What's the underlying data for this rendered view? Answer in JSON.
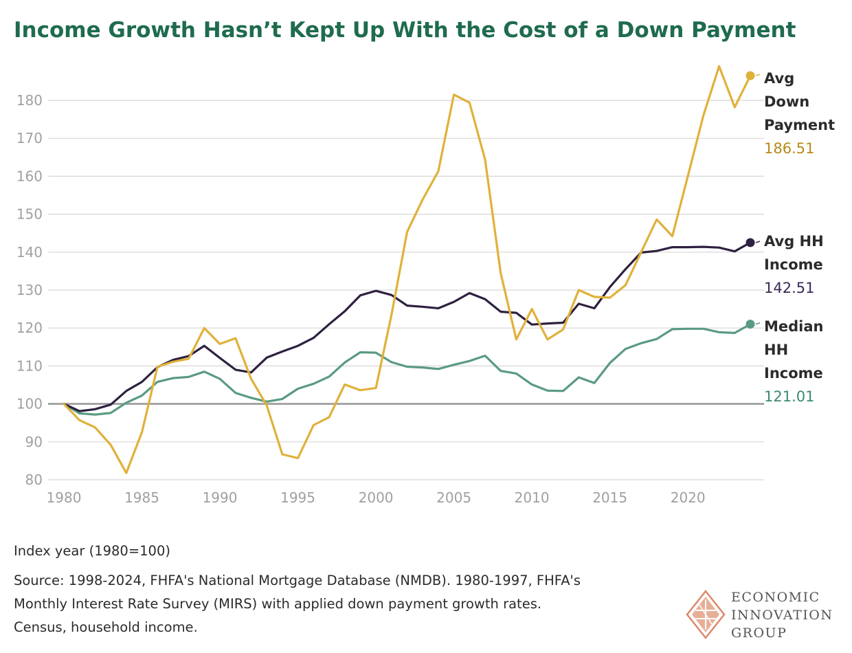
{
  "title": "Income Growth Hasn’t Kept Up With the Cost of a Down Payment",
  "chart_data": {
    "type": "line",
    "title": "Income Growth Hasn’t Kept Up With the Cost of a Down Payment",
    "xlabel": "",
    "ylabel": "Index year (1980=100)",
    "xlim": [
      1980,
      2024
    ],
    "ylim": [
      80,
      190
    ],
    "xticks": [
      1980,
      1985,
      1990,
      1995,
      2000,
      2005,
      2010,
      2015,
      2020
    ],
    "yticks": [
      80,
      90,
      100,
      110,
      120,
      130,
      140,
      150,
      160,
      170,
      180
    ],
    "baseline": 100,
    "grid": true,
    "x": [
      1980,
      1981,
      1982,
      1983,
      1984,
      1985,
      1986,
      1987,
      1988,
      1989,
      1990,
      1991,
      1992,
      1993,
      1994,
      1995,
      1996,
      1997,
      1998,
      1999,
      2000,
      2001,
      2002,
      2003,
      2004,
      2005,
      2006,
      2007,
      2008,
      2009,
      2010,
      2011,
      2012,
      2013,
      2014,
      2015,
      2016,
      2017,
      2018,
      2019,
      2020,
      2021,
      2022,
      2023,
      2024
    ],
    "series": [
      {
        "name": "Avg Down Payment",
        "label_lines": [
          "Avg",
          "Down",
          "Payment"
        ],
        "end_label": "186.51",
        "color": "#e0b13a",
        "label_color": "#b88a17",
        "values": [
          100,
          95.7,
          93.8,
          89.2,
          81.8,
          92.5,
          109.8,
          111.1,
          111.9,
          120,
          115.8,
          117.3,
          106.6,
          99.6,
          86.7,
          85.7,
          94.4,
          96.5,
          105.1,
          103.6,
          104.2,
          123.5,
          145.3,
          153.9,
          161.3,
          181.5,
          179.4,
          164.4,
          134.5,
          117,
          125,
          117,
          119.6,
          130,
          128.2,
          128,
          131.3,
          140,
          148.6,
          144.2,
          160.1,
          176.1,
          189,
          178.2,
          186.51
        ]
      },
      {
        "name": "Avg HH Income",
        "label_lines": [
          "Avg HH",
          "Income"
        ],
        "end_label": "142.51",
        "color": "#2e2040",
        "label_color": "#3a2a55",
        "values": [
          100,
          98.1,
          98.6,
          99.8,
          103.4,
          105.8,
          109.7,
          111.6,
          112.6,
          115.3,
          112.1,
          109,
          108.3,
          112.2,
          113.8,
          115.3,
          117.4,
          121,
          124.4,
          128.6,
          129.8,
          128.7,
          125.9,
          125.6,
          125.2,
          126.9,
          129.2,
          127.6,
          124.3,
          124,
          120.9,
          121.2,
          121.4,
          126.4,
          125.2,
          130.8,
          135.5,
          139.9,
          140.3,
          141.3,
          141.3,
          141.4,
          141.2,
          140.2,
          142.51
        ]
      },
      {
        "name": "Median HH Income",
        "label_lines": [
          "Median",
          "HH",
          "Income"
        ],
        "end_label": "121.01",
        "color": "#5a9a82",
        "label_color": "#3d8a6c",
        "values": [
          100,
          97.5,
          97.2,
          97.6,
          100.3,
          102.2,
          105.8,
          106.8,
          107.1,
          108.5,
          106.6,
          102.9,
          101.6,
          100.6,
          101.3,
          104,
          105.3,
          107.2,
          110.9,
          113.6,
          113.5,
          111,
          109.8,
          109.6,
          109.2,
          110.3,
          111.3,
          112.7,
          108.7,
          108,
          105.1,
          103.5,
          103.4,
          107,
          105.5,
          110.8,
          114.5,
          116,
          117.1,
          119.7,
          119.8,
          119.8,
          118.9,
          118.7,
          121.01
        ]
      }
    ]
  },
  "footnotes": {
    "index_note": "Index year (1980=100)",
    "source_line_1": "Source: 1998-2024, FHFA's National Mortgage Database (NMDB). 1980-1997, FHFA's",
    "source_line_2": "Monthly Interest Rate Survey (MIRS) with applied down payment growth rates.",
    "source_line_3": "Census, household income."
  },
  "logo": {
    "icon": "eig-diamond-logo-icon",
    "line_1": "ECONOMIC",
    "line_2": "INNOVATION",
    "line_3": "GROUP",
    "color": "#d9896b"
  }
}
